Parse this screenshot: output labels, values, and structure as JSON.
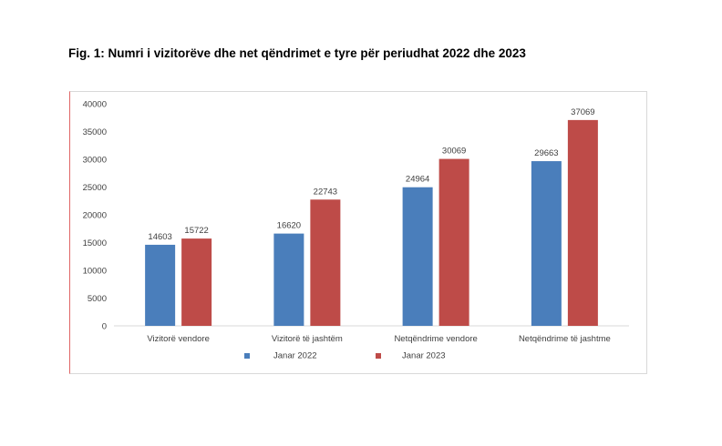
{
  "figure": {
    "title": "Fig. 1:  Numri i vizitorëve dhe net qëndrimet e tyre për periudhat 2022 dhe 2023"
  },
  "chart_data": {
    "type": "bar",
    "title": "Fig. 1:  Numri i vizitorëve dhe net qëndrimet e tyre për periudhat 2022 dhe 2023",
    "xlabel": "",
    "ylabel": "",
    "categories": [
      "Vizitorë vendore",
      "Vizitorë të jashtëm",
      "Netqëndrime vendore",
      "Netqëndrime të jashtme"
    ],
    "series": [
      {
        "name": "Janar 2022",
        "color": "#4a7ebb",
        "values": [
          14603,
          16620,
          24964,
          29663
        ]
      },
      {
        "name": "Janar 2023",
        "color": "#be4b48",
        "values": [
          15722,
          22743,
          30069,
          37069
        ]
      }
    ],
    "ylim": [
      0,
      40000
    ],
    "yticks": [
      0,
      5000,
      10000,
      15000,
      20000,
      25000,
      30000,
      35000,
      40000
    ],
    "grid": false,
    "legend": "bottom"
  }
}
